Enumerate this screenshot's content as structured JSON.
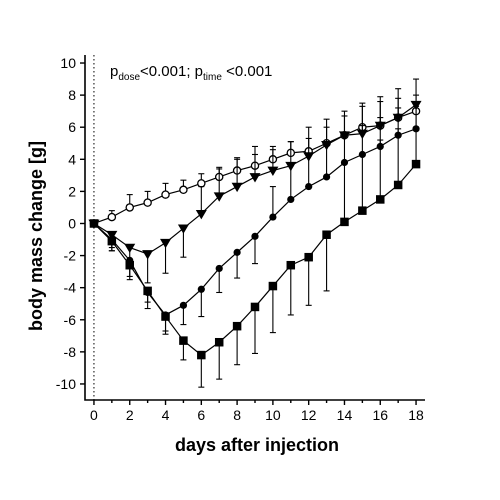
{
  "chart_data": {
    "type": "line",
    "title": "",
    "xlabel": "days after injection",
    "ylabel": "body mass change [g]",
    "xlim": [
      -0.5,
      18.5
    ],
    "ylim": [
      -11,
      10.5
    ],
    "xticks": [
      0,
      2,
      4,
      6,
      8,
      10,
      12,
      14,
      16,
      18
    ],
    "yticks": [
      -10,
      -8,
      -6,
      -4,
      -2,
      0,
      2,
      4,
      6,
      8,
      10
    ],
    "vertical_reference_line": {
      "x": 0,
      "style": "dotted"
    },
    "annotation": {
      "p1": "p",
      "p1_sub": "dose",
      "p1_rest": "<0.001; ",
      "p2": "p",
      "p2_sub": "time",
      "p2_rest": " <0.001"
    },
    "grid": false,
    "legend": "none",
    "x": [
      0,
      1,
      2,
      3,
      4,
      5,
      6,
      7,
      8,
      9,
      10,
      11,
      12,
      13,
      14,
      15,
      16,
      17,
      18
    ],
    "series": [
      {
        "marker": "open-circle",
        "values": [
          0,
          0.4,
          1.0,
          1.3,
          1.8,
          2.1,
          2.5,
          2.9,
          3.3,
          3.6,
          4.0,
          4.4,
          4.5,
          5.0,
          5.5,
          6.0,
          6.1,
          6.6,
          7.0
        ],
        "err": [
          0,
          0.4,
          0.8,
          0.7,
          0.7,
          0.6,
          0.6,
          0.6,
          0.7,
          0.7,
          0.6,
          0.7,
          0.8,
          1.0,
          1.2,
          1.3,
          1.5,
          1.2,
          1.0
        ]
      },
      {
        "marker": "filled-triangle-down",
        "values": [
          0,
          -0.7,
          -1.5,
          -1.9,
          -1.2,
          -0.3,
          0.6,
          1.7,
          2.3,
          2.9,
          3.3,
          3.6,
          4.2,
          4.9,
          5.5,
          5.6,
          6.1,
          6.6,
          7.4
        ],
        "err": [
          0,
          0.8,
          1.3,
          1.8,
          1.9,
          1.8,
          1.7,
          1.7,
          1.8,
          1.9,
          1.5,
          1.5,
          1.8,
          1.6,
          1.5,
          1.9,
          1.8,
          1.8,
          1.6
        ]
      },
      {
        "marker": "filled-circle",
        "values": [
          0,
          -1.0,
          -2.3,
          -4.3,
          -5.7,
          -5.1,
          -4.1,
          -2.8,
          -1.8,
          -0.8,
          0.4,
          1.5,
          2.3,
          2.9,
          3.8,
          4.3,
          4.8,
          5.5,
          5.9
        ],
        "err": [
          0,
          0.7,
          1.0,
          1.0,
          1.2,
          1.2,
          1.7,
          1.5,
          1.6,
          1.7,
          1.9,
          2.1,
          2.0,
          2.1,
          1.6,
          1.8,
          1.8,
          1.7,
          1.6
        ]
      },
      {
        "marker": "filled-square",
        "values": [
          0,
          -1.1,
          -2.6,
          -4.2,
          -5.8,
          -7.3,
          -8.2,
          -7.4,
          -6.4,
          -5.2,
          -3.9,
          -2.6,
          -2.1,
          -0.7,
          0.1,
          0.8,
          1.5,
          2.4,
          3.7
        ],
        "err": [
          0,
          0.6,
          0.9,
          0.7,
          0.9,
          1.2,
          2.0,
          2.3,
          2.4,
          2.9,
          2.9,
          3.1,
          3.0,
          3.5,
          3.8,
          3.5,
          3.7,
          3.5,
          3.6
        ]
      }
    ]
  }
}
